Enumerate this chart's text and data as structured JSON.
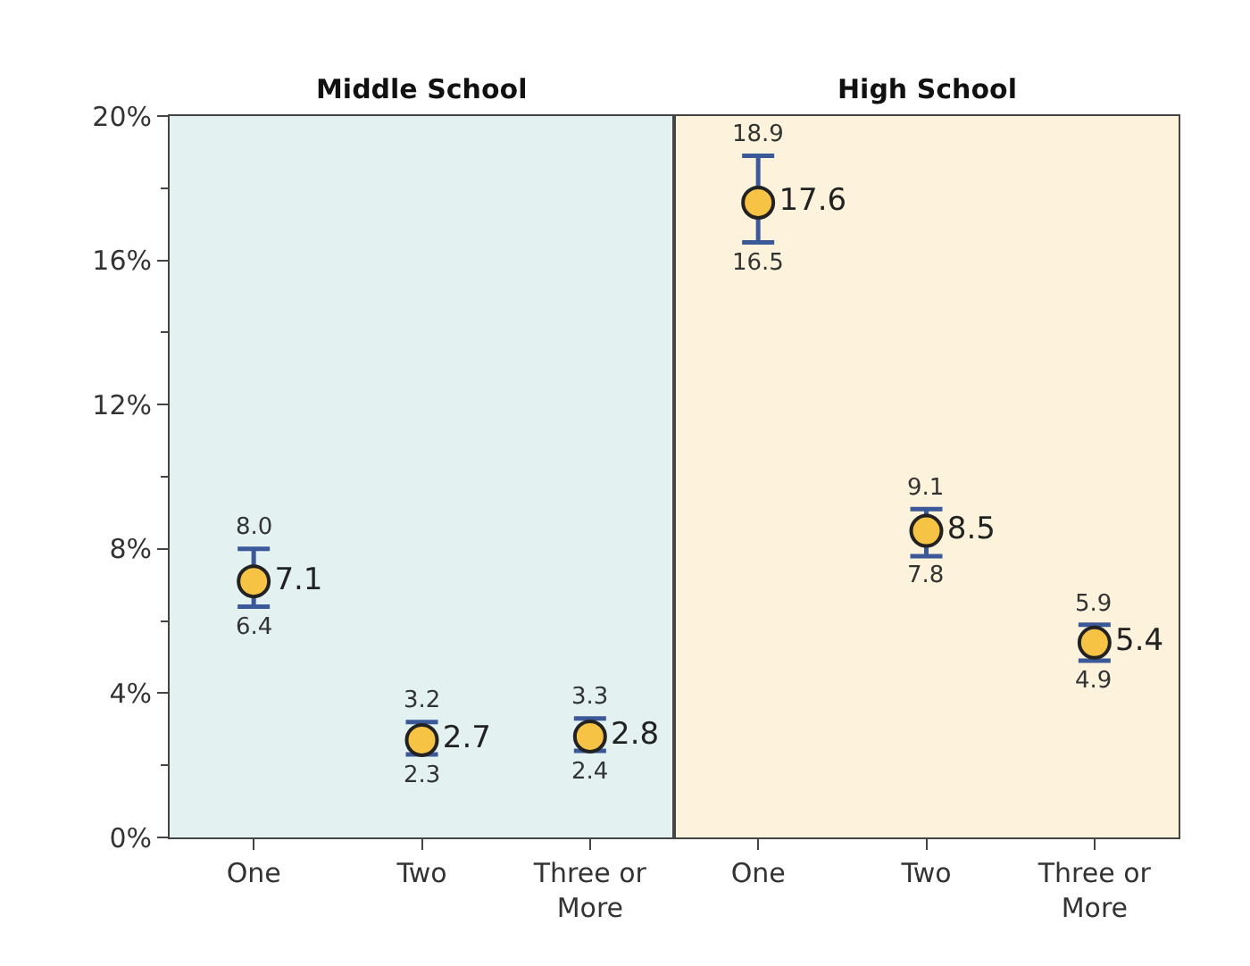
{
  "chart_data": [
    {
      "type": "scatter",
      "title": "Middle School",
      "categories": [
        "One",
        "Two",
        "Three or More"
      ],
      "series": [
        {
          "color": "#f7c344",
          "values": [
            7.1,
            2.7,
            2.8
          ],
          "errors": [
            [
              6.4,
              8.0
            ],
            [
              2.3,
              3.2
            ],
            [
              2.4,
              3.3
            ]
          ]
        }
      ],
      "ylim": [
        0,
        20
      ],
      "yticks": [
        {
          "value": 0,
          "label": "0%"
        },
        {
          "value": 4,
          "label": "4%"
        },
        {
          "value": 8,
          "label": "8%"
        },
        {
          "value": 12,
          "label": "12%"
        },
        {
          "value": 16,
          "label": "16%"
        },
        {
          "value": 20,
          "label": "20%"
        }
      ],
      "data_labels": true,
      "marker": "circle",
      "grid": false,
      "annotations": [
        {
          "text": "8.0",
          "x": "One",
          "y": 8.0
        },
        {
          "text": "6.4",
          "x": "One",
          "y": 6.4
        },
        {
          "text": "3.2",
          "x": "Two",
          "y": 3.2
        },
        {
          "text": "2.3",
          "x": "Two",
          "y": 2.3
        },
        {
          "text": "3.3",
          "x": "Three or More",
          "y": 3.3
        },
        {
          "text": "2.4",
          "x": "Three or More",
          "y": 2.4
        }
      ]
    },
    {
      "type": "scatter",
      "title": "High School",
      "categories": [
        "One",
        "Two",
        "Three or More"
      ],
      "series": [
        {
          "color": "#f7c344",
          "values": [
            17.6,
            8.5,
            5.4
          ],
          "errors": [
            [
              16.5,
              18.9
            ],
            [
              7.8,
              9.1
            ],
            [
              4.9,
              5.9
            ]
          ]
        }
      ],
      "ylim": [
        0,
        20
      ],
      "tick_labels": "x",
      "data_labels": true,
      "marker": "circle",
      "grid": false,
      "annotations": [
        {
          "text": "18.9",
          "x": "One",
          "y": 18.9
        },
        {
          "text": "16.5",
          "x": "One",
          "y": 16.5
        },
        {
          "text": "9.1",
          "x": "Two",
          "y": 9.1
        },
        {
          "text": "7.8",
          "x": "Two",
          "y": 7.8
        },
        {
          "text": "5.9",
          "x": "Three or More",
          "y": 5.9
        },
        {
          "text": "4.9",
          "x": "Three or More",
          "y": 4.9
        }
      ]
    }
  ]
}
